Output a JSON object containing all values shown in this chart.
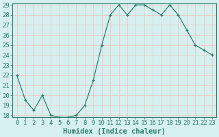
{
  "x": [
    0,
    1,
    2,
    3,
    4,
    5,
    6,
    7,
    8,
    9,
    10,
    11,
    12,
    13,
    14,
    15,
    16,
    17,
    18,
    19,
    20,
    21,
    22,
    23
  ],
  "y": [
    22,
    19.5,
    18.5,
    20,
    18,
    17.8,
    17.8,
    18,
    19,
    21.5,
    25,
    28,
    29,
    28,
    29,
    29,
    28.5,
    28,
    29,
    28,
    26.5,
    25,
    24.5,
    24
  ],
  "xlabel": "Humidex (Indice chaleur)",
  "ylim_min": 18,
  "ylim_max": 29,
  "xlim_min": 0,
  "xlim_max": 23,
  "yticks": [
    18,
    19,
    20,
    21,
    22,
    23,
    24,
    25,
    26,
    27,
    28,
    29
  ],
  "xticks": [
    0,
    1,
    2,
    3,
    4,
    5,
    6,
    7,
    8,
    9,
    10,
    11,
    12,
    13,
    14,
    15,
    16,
    17,
    18,
    19,
    20,
    21,
    22,
    23
  ],
  "line_color": "#2e7d6e",
  "marker": "+",
  "background_color": "#d6f0ef",
  "grid_color": "#e8c8c8",
  "tick_label_color": "#2e7d6e",
  "xlabel_color": "#2e7d6e",
  "xlabel_fontsize": 7.5,
  "tick_fontsize": 6.5
}
